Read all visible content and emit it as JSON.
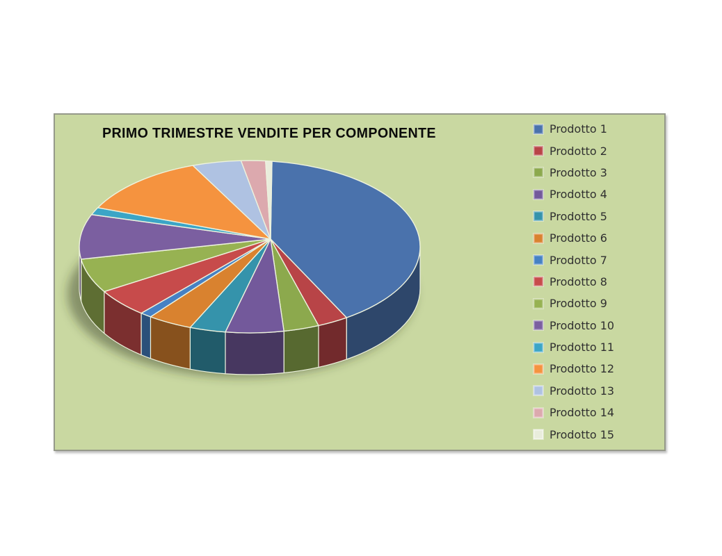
{
  "page": {
    "background": "#FFFFFF"
  },
  "panel": {
    "background": "#C9D8A1",
    "border_color": "#95998A"
  },
  "chart_data": {
    "type": "pie",
    "variant": "3d",
    "title": "PRIMO TRIMESTRE VENDITE PER COMPONENTE",
    "legend_position": "right",
    "grid": false,
    "start_angle_deg": 7.5,
    "categories": [
      "Prodotto 1",
      "Prodotto 2",
      "Prodotto 3",
      "Prodotto 4",
      "Prodotto 5",
      "Prodotto 6",
      "Prodotto 7",
      "Prodotto 8",
      "Prodotto 9",
      "Prodotto 10",
      "Prodotto 11",
      "Prodotto 12",
      "Prodotto 13",
      "Prodotto 14",
      "Prodotto 15"
    ],
    "values": [
      38.3,
      3.0,
      3.4,
      5.5,
      3.4,
      4.2,
      1.1,
      5.3,
      6.4,
      8.4,
      1.4,
      12.1,
      4.6,
      2.3,
      0.6
    ],
    "colors": [
      "#4A72AC",
      "#B84447",
      "#8CA94D",
      "#73599B",
      "#3593AB",
      "#D9822F",
      "#4681C4",
      "#C74B4B",
      "#97B252",
      "#7B5FA0",
      "#3BA5C6",
      "#F5933F",
      "#AFC2E2",
      "#DCA9AE",
      "#E9EDDC"
    ],
    "separator_color": "#EDF2DE",
    "side_shade_factor": 0.62,
    "shadow_color": "rgba(50,60,38,0.45)"
  }
}
